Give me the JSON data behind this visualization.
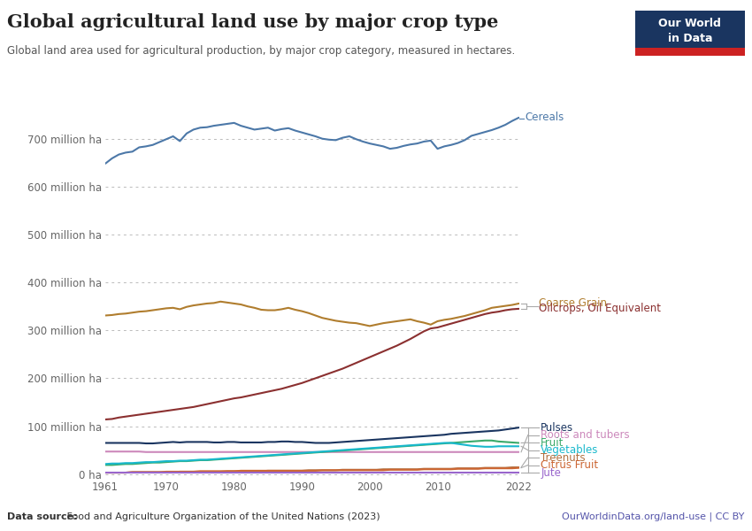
{
  "title": "Global agricultural land use by major crop type",
  "subtitle": "Global land area used for agricultural production, by major crop category, measured in hectares.",
  "datasource_bold": "Data source:",
  "datasource_rest": " Food and Agriculture Organization of the United Nations (2023)",
  "url": "OurWorldinData.org/land-use | CC BY",
  "years": [
    1961,
    1962,
    1963,
    1964,
    1965,
    1966,
    1967,
    1968,
    1969,
    1970,
    1971,
    1972,
    1973,
    1974,
    1975,
    1976,
    1977,
    1978,
    1979,
    1980,
    1981,
    1982,
    1983,
    1984,
    1985,
    1986,
    1987,
    1988,
    1989,
    1990,
    1991,
    1992,
    1993,
    1994,
    1995,
    1996,
    1997,
    1998,
    1999,
    2000,
    2001,
    2002,
    2003,
    2004,
    2005,
    2006,
    2007,
    2008,
    2009,
    2010,
    2011,
    2012,
    2013,
    2014,
    2015,
    2016,
    2017,
    2018,
    2019,
    2020,
    2021,
    2022
  ],
  "series": {
    "Cereals": {
      "color": "#4c78a8",
      "data": [
        648,
        659,
        667,
        671,
        673,
        682,
        684,
        687,
        693,
        699,
        705,
        695,
        711,
        719,
        723,
        724,
        727,
        729,
        731,
        733,
        727,
        723,
        719,
        721,
        723,
        717,
        720,
        722,
        717,
        713,
        709,
        705,
        700,
        698,
        697,
        702,
        705,
        699,
        694,
        690,
        687,
        684,
        679,
        681,
        685,
        688,
        690,
        694,
        696,
        679,
        684,
        687,
        691,
        697,
        706,
        710,
        714,
        718,
        723,
        729,
        737,
        744
      ]
    },
    "Coarse Grain": {
      "color": "#b07d2e",
      "data": [
        331,
        332,
        334,
        335,
        337,
        339,
        340,
        342,
        344,
        346,
        347,
        344,
        349,
        352,
        354,
        356,
        357,
        360,
        358,
        356,
        354,
        350,
        347,
        343,
        342,
        342,
        344,
        347,
        343,
        340,
        336,
        331,
        326,
        323,
        320,
        318,
        316,
        315,
        312,
        309,
        312,
        315,
        317,
        319,
        321,
        323,
        319,
        316,
        312,
        319,
        322,
        324,
        327,
        330,
        334,
        338,
        342,
        347,
        349,
        351,
        353,
        356
      ]
    },
    "Oilcrops, Oil Equivalent": {
      "color": "#8b3030",
      "data": [
        114,
        115,
        118,
        120,
        122,
        124,
        126,
        128,
        130,
        132,
        134,
        136,
        138,
        140,
        143,
        146,
        149,
        152,
        155,
        158,
        160,
        163,
        166,
        169,
        172,
        175,
        178,
        182,
        186,
        190,
        195,
        200,
        205,
        210,
        215,
        220,
        226,
        232,
        238,
        244,
        250,
        256,
        262,
        268,
        275,
        282,
        290,
        298,
        304,
        306,
        310,
        314,
        318,
        322,
        326,
        330,
        334,
        337,
        339,
        342,
        344,
        345
      ]
    },
    "Pulses": {
      "color": "#1a3560",
      "data": [
        65,
        65,
        65,
        65,
        65,
        65,
        64,
        64,
        65,
        66,
        67,
        66,
        67,
        67,
        67,
        67,
        66,
        66,
        67,
        67,
        66,
        66,
        66,
        66,
        67,
        67,
        68,
        68,
        67,
        67,
        66,
        65,
        65,
        65,
        66,
        67,
        68,
        69,
        70,
        71,
        72,
        73,
        74,
        75,
        76,
        77,
        78,
        79,
        80,
        81,
        82,
        84,
        85,
        86,
        87,
        88,
        89,
        90,
        91,
        93,
        95,
        97
      ]
    },
    "Roots and tubers": {
      "color": "#cc88bb",
      "data": [
        47,
        47,
        47,
        47,
        47,
        47,
        46,
        46,
        46,
        46,
        46,
        46,
        46,
        46,
        46,
        46,
        46,
        46,
        46,
        46,
        46,
        46,
        46,
        46,
        46,
        46,
        46,
        46,
        46,
        46,
        46,
        46,
        46,
        46,
        46,
        46,
        46,
        46,
        46,
        46,
        46,
        46,
        46,
        46,
        46,
        46,
        46,
        46,
        46,
        46,
        46,
        46,
        46,
        46,
        46,
        46,
        46,
        46,
        46,
        46,
        46,
        46
      ]
    },
    "Fruit": {
      "color": "#3aaa6a",
      "data": [
        19,
        19,
        20,
        21,
        21,
        22,
        23,
        24,
        24,
        25,
        26,
        27,
        27,
        28,
        29,
        29,
        30,
        31,
        32,
        33,
        34,
        35,
        36,
        37,
        38,
        39,
        40,
        41,
        42,
        43,
        44,
        45,
        46,
        47,
        48,
        49,
        50,
        51,
        52,
        53,
        54,
        55,
        56,
        57,
        58,
        59,
        60,
        61,
        62,
        63,
        64,
        65,
        66,
        67,
        68,
        69,
        70,
        70,
        68,
        67,
        66,
        65
      ]
    },
    "Vegetables": {
      "color": "#18b8cc",
      "data": [
        21,
        22,
        22,
        23,
        23,
        24,
        25,
        25,
        26,
        27,
        27,
        28,
        28,
        29,
        30,
        30,
        31,
        32,
        33,
        34,
        35,
        36,
        37,
        38,
        39,
        40,
        41,
        42,
        43,
        44,
        45,
        46,
        47,
        48,
        49,
        50,
        51,
        52,
        53,
        54,
        55,
        56,
        57,
        58,
        59,
        60,
        61,
        62,
        63,
        64,
        65,
        65,
        63,
        61,
        59,
        58,
        57,
        57,
        58,
        58,
        58,
        58
      ]
    },
    "Treenuts": {
      "color": "#b07040",
      "data": [
        3,
        3,
        3,
        3,
        4,
        4,
        4,
        4,
        4,
        4,
        4,
        5,
        5,
        5,
        5,
        5,
        5,
        5,
        6,
        6,
        6,
        6,
        6,
        6,
        7,
        7,
        7,
        7,
        7,
        7,
        8,
        8,
        8,
        8,
        8,
        9,
        9,
        9,
        9,
        9,
        9,
        10,
        10,
        10,
        10,
        10,
        10,
        11,
        11,
        11,
        11,
        11,
        12,
        12,
        12,
        12,
        13,
        13,
        13,
        13,
        14,
        14
      ]
    },
    "Citrus Fruit": {
      "color": "#cc6633",
      "data": [
        3,
        3,
        3,
        3,
        4,
        4,
        4,
        4,
        4,
        5,
        5,
        5,
        5,
        5,
        6,
        6,
        6,
        6,
        6,
        6,
        7,
        7,
        7,
        7,
        7,
        7,
        7,
        7,
        7,
        7,
        7,
        7,
        8,
        8,
        8,
        8,
        8,
        8,
        8,
        8,
        8,
        8,
        9,
        9,
        9,
        9,
        9,
        10,
        10,
        10,
        10,
        10,
        11,
        11,
        11,
        11,
        12,
        12,
        12,
        12,
        12,
        13
      ]
    },
    "Jute": {
      "color": "#9966cc",
      "data": [
        3,
        3,
        3,
        3,
        3,
        3,
        3,
        3,
        3,
        3,
        3,
        3,
        3,
        3,
        3,
        3,
        3,
        3,
        3,
        3,
        3,
        3,
        3,
        3,
        3,
        3,
        3,
        3,
        3,
        3,
        3,
        3,
        3,
        3,
        3,
        3,
        3,
        3,
        3,
        3,
        3,
        3,
        3,
        3,
        3,
        3,
        3,
        3,
        3,
        3,
        3,
        3,
        3,
        3,
        3,
        3,
        3,
        3,
        3,
        3,
        3,
        3
      ]
    }
  },
  "yticks": [
    0,
    100,
    200,
    300,
    400,
    500,
    600,
    700
  ],
  "ytick_labels": [
    "0 ha",
    "100 million ha",
    "200 million ha",
    "300 million ha",
    "400 million ha",
    "500 million ha",
    "600 million ha",
    "700 million ha"
  ],
  "ylim": [
    -8,
    790
  ],
  "xlim_start": 1961,
  "xlim_end": 2022,
  "xticks": [
    1961,
    1970,
    1980,
    1990,
    2000,
    2010,
    2022
  ]
}
